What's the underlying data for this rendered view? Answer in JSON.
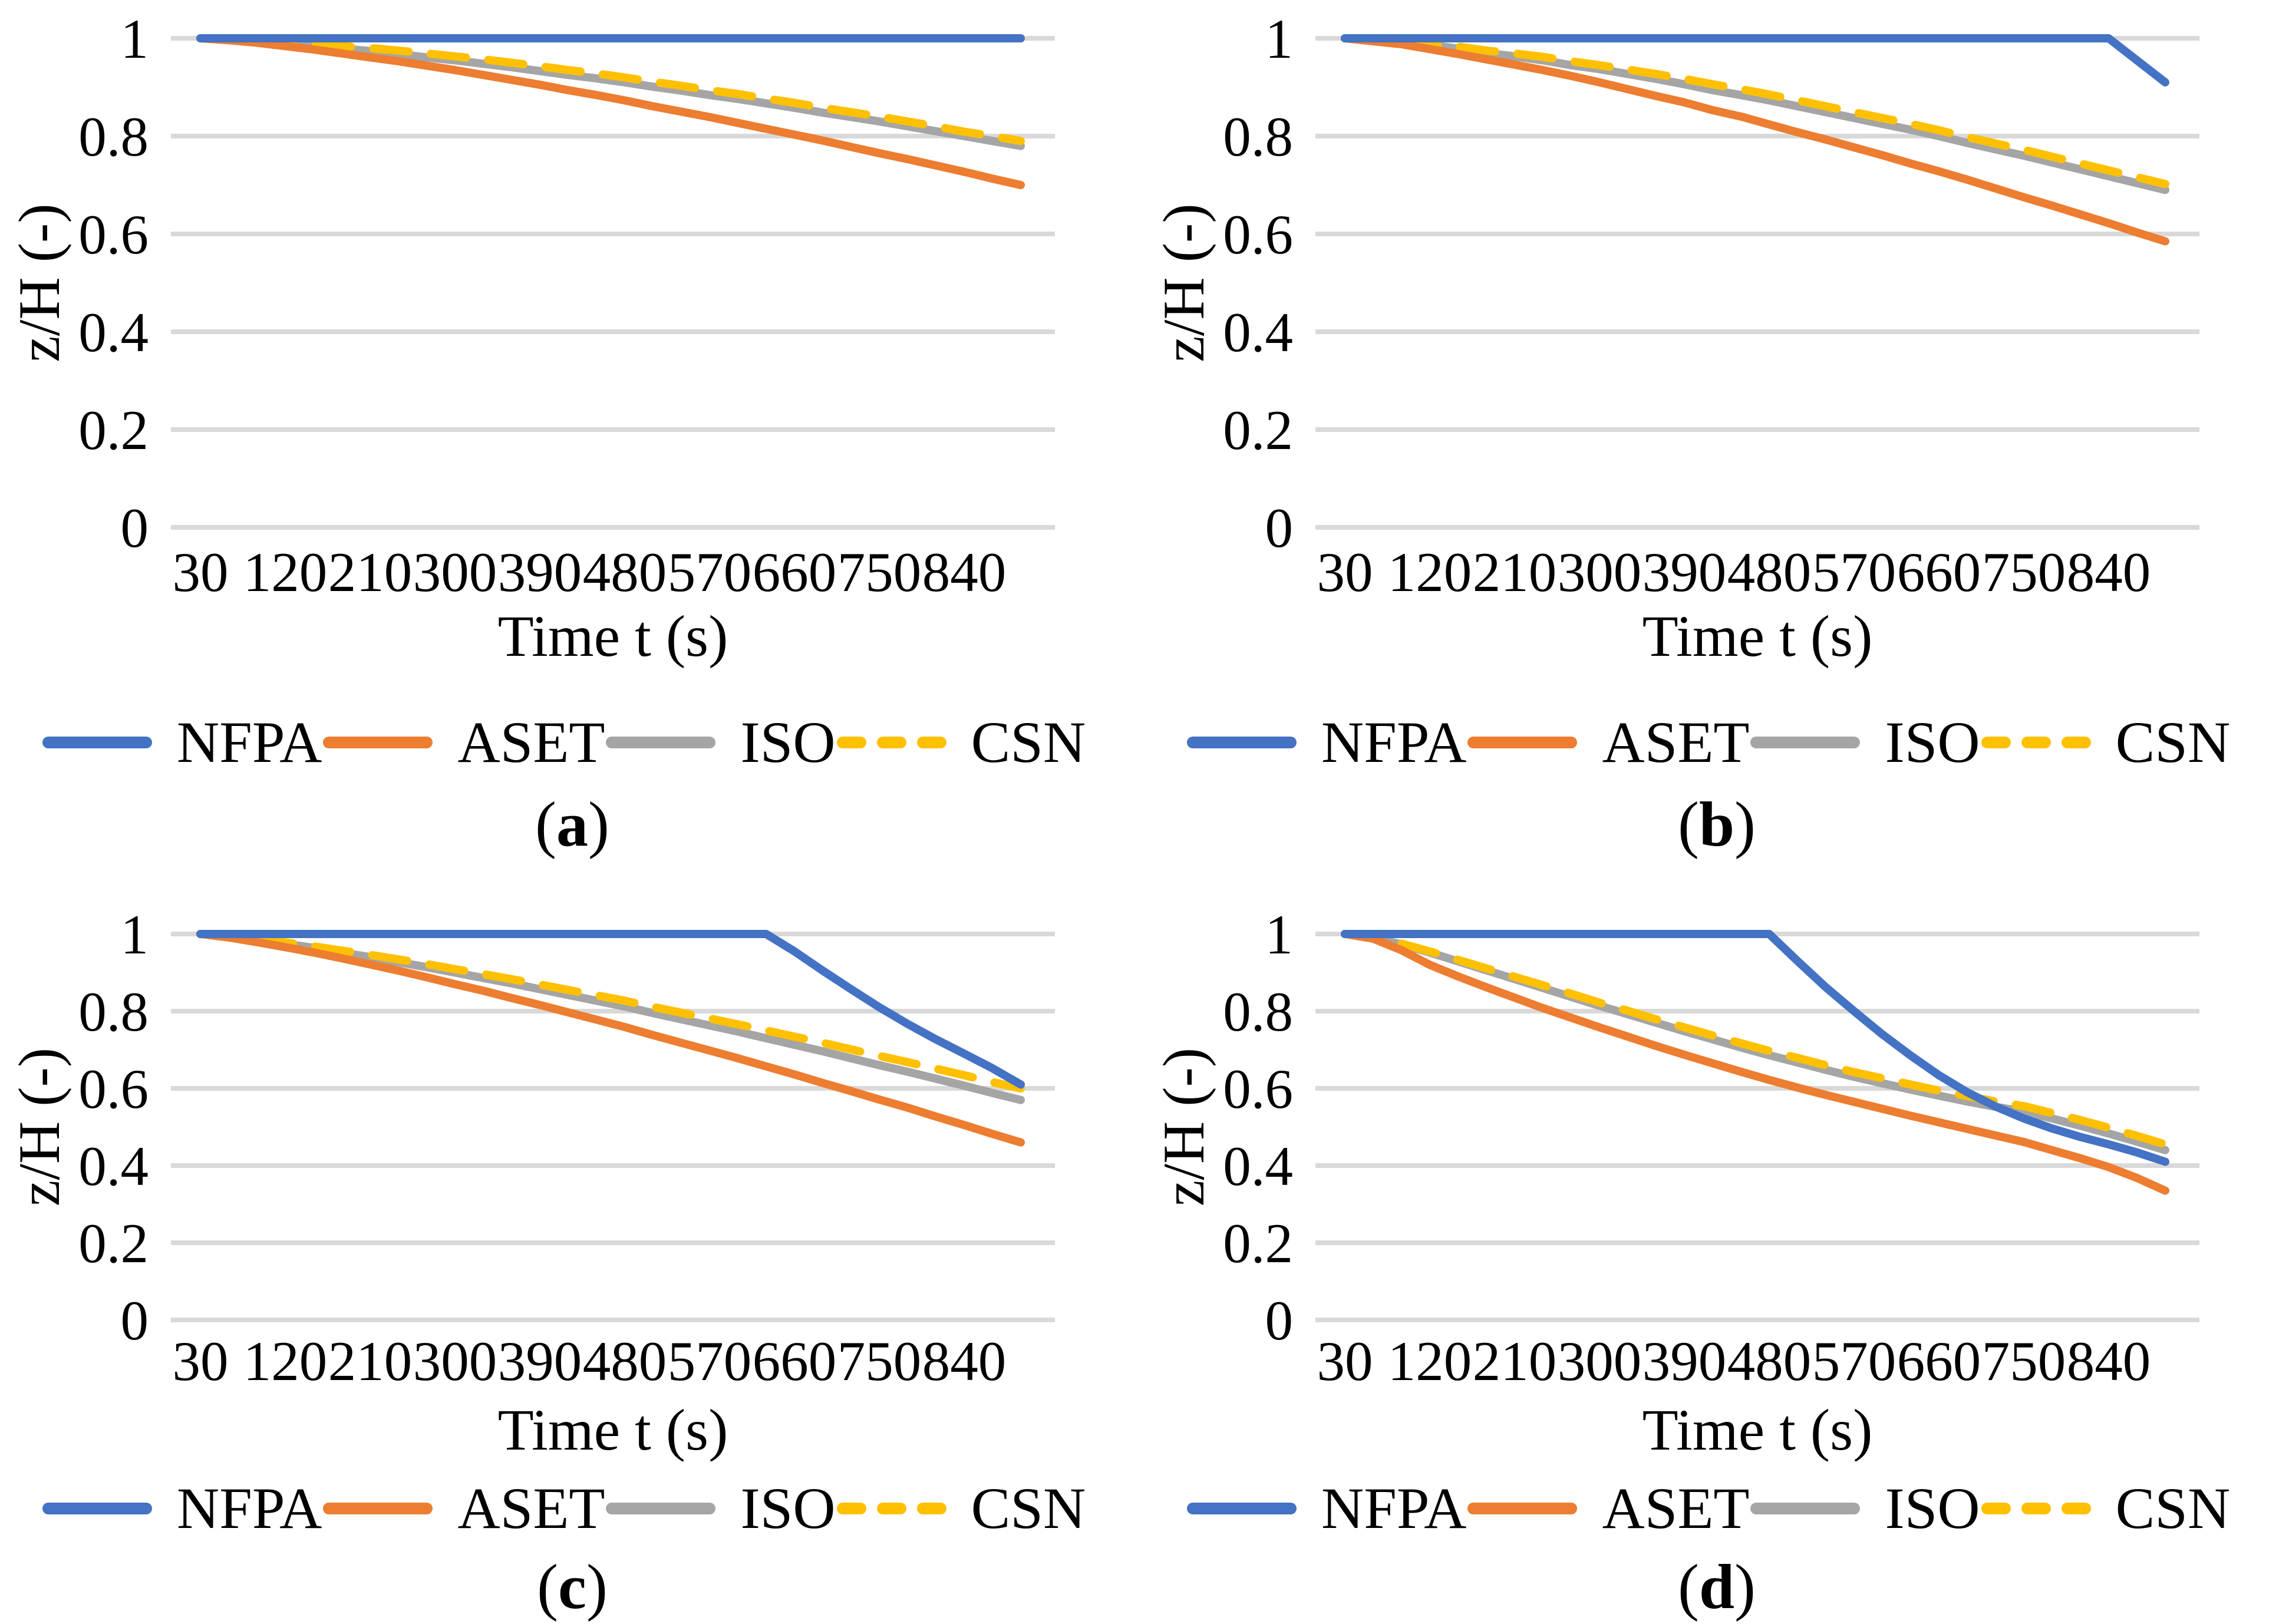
{
  "palette": {
    "nfpa": "#4472C4",
    "aset": "#ED7D31",
    "iso": "#A5A5A5",
    "csn": "#FFC000",
    "gridline": "#D9D9D9",
    "text": "#000000"
  },
  "chart_data": [
    {
      "id": "a",
      "type": "line",
      "caption": {
        "open": "(",
        "letter": "a",
        "close": ")"
      },
      "xlabel": "Time t (s)",
      "ylabel": "z/H (-)",
      "x_ticks": [
        "30",
        "120",
        "210",
        "300",
        "390",
        "480",
        "570",
        "660",
        "750",
        "840"
      ],
      "y_ticks": [
        "1",
        "0.8",
        "0.6",
        "0.4",
        "0.2",
        "0"
      ],
      "ylim": [
        0,
        1
      ],
      "grid": true,
      "legend_position": "bottom",
      "x": [
        30,
        60,
        90,
        120,
        150,
        180,
        210,
        240,
        270,
        300,
        330,
        360,
        390,
        420,
        450,
        480,
        510,
        540,
        570,
        600,
        630,
        660,
        690,
        720,
        750,
        780,
        810,
        840,
        870,
        900
      ],
      "series": [
        {
          "name": "NFPA",
          "color_key": "nfpa",
          "dash": false,
          "values": [
            1.0,
            1.0,
            1.0,
            1.0,
            1.0,
            1.0,
            1.0,
            1.0,
            1.0,
            1.0,
            1.0,
            1.0,
            1.0,
            1.0,
            1.0,
            1.0,
            1.0,
            1.0,
            1.0,
            1.0,
            1.0,
            1.0,
            1.0,
            1.0,
            1.0,
            1.0,
            1.0,
            1.0,
            1.0,
            1.0
          ]
        },
        {
          "name": "ASET",
          "color_key": "aset",
          "dash": false,
          "values": [
            1.0,
            0.996,
            0.991,
            0.984,
            0.977,
            0.969,
            0.961,
            0.953,
            0.944,
            0.935,
            0.925,
            0.915,
            0.905,
            0.894,
            0.884,
            0.873,
            0.861,
            0.85,
            0.839,
            0.827,
            0.815,
            0.803,
            0.791,
            0.778,
            0.765,
            0.753,
            0.74,
            0.727,
            0.713,
            0.7
          ]
        },
        {
          "name": "ISO",
          "color_key": "iso",
          "dash": false,
          "values": [
            1.0,
            0.998,
            0.994,
            0.99,
            0.985,
            0.979,
            0.974,
            0.968,
            0.961,
            0.955,
            0.948,
            0.941,
            0.933,
            0.925,
            0.918,
            0.91,
            0.901,
            0.893,
            0.884,
            0.876,
            0.867,
            0.858,
            0.848,
            0.839,
            0.83,
            0.82,
            0.81,
            0.8,
            0.79,
            0.78
          ]
        },
        {
          "name": "CSN",
          "color_key": "csn",
          "dash": true,
          "values": [
            1.0,
            0.999,
            0.996,
            0.993,
            0.989,
            0.984,
            0.98,
            0.975,
            0.969,
            0.963,
            0.957,
            0.95,
            0.943,
            0.935,
            0.928,
            0.92,
            0.911,
            0.903,
            0.894,
            0.886,
            0.877,
            0.868,
            0.858,
            0.849,
            0.84,
            0.83,
            0.82,
            0.809,
            0.8,
            0.79
          ]
        }
      ]
    },
    {
      "id": "b",
      "type": "line",
      "caption": {
        "open": "(",
        "letter": "b",
        "close": ")"
      },
      "xlabel": "Time t (s)",
      "ylabel": "z/H (-)",
      "x_ticks": [
        "30",
        "120",
        "210",
        "300",
        "390",
        "480",
        "570",
        "660",
        "750",
        "840"
      ],
      "y_ticks": [
        "1",
        "0.8",
        "0.6",
        "0.4",
        "0.2",
        "0"
      ],
      "ylim": [
        0,
        1
      ],
      "grid": true,
      "legend_position": "bottom",
      "x": [
        30,
        60,
        90,
        120,
        150,
        180,
        210,
        240,
        270,
        300,
        330,
        360,
        390,
        420,
        450,
        480,
        510,
        540,
        570,
        600,
        630,
        660,
        690,
        720,
        750,
        780,
        810,
        840,
        870,
        900
      ],
      "series": [
        {
          "name": "NFPA",
          "color_key": "nfpa",
          "dash": false,
          "values": [
            1.0,
            1.0,
            1.0,
            1.0,
            1.0,
            1.0,
            1.0,
            1.0,
            1.0,
            1.0,
            1.0,
            1.0,
            1.0,
            1.0,
            1.0,
            1.0,
            1.0,
            1.0,
            1.0,
            1.0,
            1.0,
            1.0,
            1.0,
            1.0,
            1.0,
            1.0,
            1.0,
            1.0,
            0.955,
            0.91
          ]
        },
        {
          "name": "ASET",
          "color_key": "aset",
          "dash": false,
          "values": [
            1.0,
            0.994,
            0.988,
            0.978,
            0.968,
            0.957,
            0.946,
            0.935,
            0.923,
            0.91,
            0.896,
            0.882,
            0.869,
            0.853,
            0.84,
            0.824,
            0.808,
            0.793,
            0.777,
            0.761,
            0.744,
            0.728,
            0.711,
            0.693,
            0.675,
            0.658,
            0.64,
            0.622,
            0.603,
            0.585
          ]
        },
        {
          "name": "ISO",
          "color_key": "iso",
          "dash": false,
          "values": [
            1.0,
            0.997,
            0.992,
            0.986,
            0.979,
            0.97,
            0.963,
            0.955,
            0.945,
            0.937,
            0.927,
            0.917,
            0.906,
            0.894,
            0.884,
            0.873,
            0.861,
            0.849,
            0.837,
            0.825,
            0.813,
            0.8,
            0.786,
            0.773,
            0.76,
            0.746,
            0.732,
            0.718,
            0.704,
            0.69
          ]
        },
        {
          "name": "CSN",
          "color_key": "csn",
          "dash": true,
          "values": [
            1.0,
            0.998,
            0.994,
            0.989,
            0.983,
            0.975,
            0.969,
            0.962,
            0.953,
            0.945,
            0.936,
            0.927,
            0.917,
            0.906,
            0.896,
            0.885,
            0.873,
            0.861,
            0.849,
            0.837,
            0.825,
            0.812,
            0.798,
            0.785,
            0.772,
            0.758,
            0.744,
            0.73,
            0.716,
            0.702
          ]
        }
      ]
    },
    {
      "id": "c",
      "type": "line",
      "caption": {
        "open": "(",
        "letter": "c",
        "close": ")"
      },
      "xlabel": "Time t (s)",
      "ylabel": "z/H (-)",
      "x_ticks": [
        "30",
        "120",
        "210",
        "300",
        "390",
        "480",
        "570",
        "660",
        "750",
        "840"
      ],
      "y_ticks": [
        "1",
        "0.8",
        "0.6",
        "0.4",
        "0.2",
        "0"
      ],
      "ylim": [
        0,
        1
      ],
      "grid": true,
      "legend_position": "bottom",
      "x": [
        30,
        60,
        90,
        120,
        150,
        180,
        210,
        240,
        270,
        300,
        330,
        360,
        390,
        420,
        450,
        480,
        510,
        540,
        570,
        600,
        630,
        660,
        690,
        720,
        750,
        780,
        810,
        840,
        870,
        900
      ],
      "series": [
        {
          "name": "NFPA",
          "color_key": "nfpa",
          "dash": false,
          "values": [
            1.0,
            1.0,
            1.0,
            1.0,
            1.0,
            1.0,
            1.0,
            1.0,
            1.0,
            1.0,
            1.0,
            1.0,
            1.0,
            1.0,
            1.0,
            1.0,
            1.0,
            1.0,
            1.0,
            1.0,
            1.0,
            0.955,
            0.905,
            0.857,
            0.81,
            0.767,
            0.727,
            0.69,
            0.652,
            0.61
          ]
        },
        {
          "name": "ASET",
          "color_key": "aset",
          "dash": false,
          "values": [
            1.0,
            0.991,
            0.979,
            0.966,
            0.952,
            0.937,
            0.921,
            0.905,
            0.888,
            0.87,
            0.853,
            0.834,
            0.816,
            0.797,
            0.778,
            0.759,
            0.738,
            0.718,
            0.698,
            0.678,
            0.657,
            0.636,
            0.614,
            0.593,
            0.571,
            0.55,
            0.527,
            0.505,
            0.482,
            0.46
          ]
        },
        {
          "name": "ISO",
          "color_key": "iso",
          "dash": false,
          "values": [
            1.0,
            0.994,
            0.985,
            0.975,
            0.964,
            0.952,
            0.94,
            0.927,
            0.914,
            0.9,
            0.886,
            0.872,
            0.857,
            0.842,
            0.827,
            0.812,
            0.795,
            0.779,
            0.763,
            0.747,
            0.73,
            0.713,
            0.696,
            0.678,
            0.66,
            0.643,
            0.625,
            0.607,
            0.588,
            0.57
          ]
        },
        {
          "name": "CSN",
          "color_key": "csn",
          "dash": true,
          "values": [
            1.0,
            0.995,
            0.987,
            0.978,
            0.968,
            0.957,
            0.946,
            0.934,
            0.922,
            0.909,
            0.896,
            0.883,
            0.869,
            0.855,
            0.841,
            0.827,
            0.811,
            0.796,
            0.781,
            0.766,
            0.75,
            0.734,
            0.718,
            0.701,
            0.684,
            0.668,
            0.651,
            0.634,
            0.616,
            0.6
          ]
        }
      ]
    },
    {
      "id": "d",
      "type": "line",
      "caption": {
        "open": "(",
        "letter": "d",
        "close": ")"
      },
      "xlabel": "Time t (s)",
      "ylabel": "z/H (-)",
      "x_ticks": [
        "30",
        "120",
        "210",
        "300",
        "390",
        "480",
        "570",
        "660",
        "750",
        "840"
      ],
      "y_ticks": [
        "1",
        "0.8",
        "0.6",
        "0.4",
        "0.2",
        "0"
      ],
      "ylim": [
        0,
        1
      ],
      "grid": true,
      "legend_position": "bottom",
      "x": [
        30,
        60,
        90,
        120,
        150,
        180,
        210,
        240,
        270,
        300,
        330,
        360,
        390,
        420,
        450,
        480,
        510,
        540,
        570,
        600,
        630,
        660,
        690,
        720,
        750,
        780,
        810,
        840,
        870,
        900
      ],
      "series": [
        {
          "name": "NFPA",
          "color_key": "nfpa",
          "dash": false,
          "values": [
            1.0,
            1.0,
            1.0,
            1.0,
            1.0,
            1.0,
            1.0,
            1.0,
            1.0,
            1.0,
            1.0,
            1.0,
            1.0,
            1.0,
            1.0,
            1.0,
            0.93,
            0.862,
            0.8,
            0.74,
            0.685,
            0.634,
            0.59,
            0.553,
            0.522,
            0.496,
            0.474,
            0.455,
            0.434,
            0.41
          ]
        },
        {
          "name": "ASET",
          "color_key": "aset",
          "dash": false,
          "values": [
            1.0,
            0.988,
            0.958,
            0.92,
            0.89,
            0.862,
            0.835,
            0.808,
            0.783,
            0.758,
            0.734,
            0.71,
            0.687,
            0.665,
            0.643,
            0.622,
            0.602,
            0.583,
            0.565,
            0.547,
            0.529,
            0.512,
            0.495,
            0.478,
            0.461,
            0.44,
            0.419,
            0.396,
            0.368,
            0.335
          ]
        },
        {
          "name": "ISO",
          "color_key": "iso",
          "dash": false,
          "values": [
            1.0,
            0.99,
            0.973,
            0.952,
            0.929,
            0.906,
            0.883,
            0.86,
            0.837,
            0.814,
            0.792,
            0.77,
            0.748,
            0.727,
            0.706,
            0.686,
            0.667,
            0.648,
            0.63,
            0.613,
            0.597,
            0.581,
            0.566,
            0.552,
            0.54,
            0.522,
            0.503,
            0.483,
            0.462,
            0.44
          ]
        },
        {
          "name": "CSN",
          "color_key": "csn",
          "dash": true,
          "values": [
            1.0,
            0.991,
            0.975,
            0.955,
            0.933,
            0.911,
            0.889,
            0.867,
            0.845,
            0.822,
            0.801,
            0.779,
            0.758,
            0.737,
            0.717,
            0.697,
            0.679,
            0.66,
            0.642,
            0.626,
            0.61,
            0.594,
            0.58,
            0.566,
            0.554,
            0.536,
            0.518,
            0.498,
            0.477,
            0.455
          ]
        }
      ]
    }
  ]
}
